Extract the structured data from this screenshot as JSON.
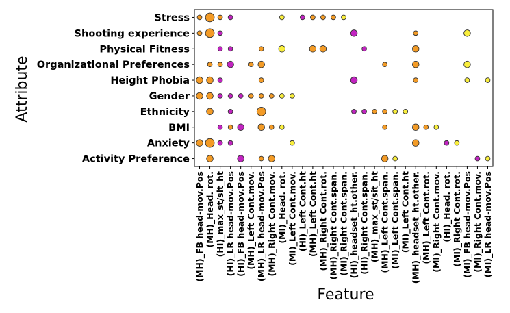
{
  "chart_data": {
    "type": "scatter",
    "title": "",
    "xlabel": "Feature",
    "ylabel": "Attribute",
    "grid": false,
    "legend": "none",
    "colors": {
      "orange": "#f39b26",
      "yellow": "#f9ee3c",
      "magenta": "#c124c0"
    },
    "categories_x": [
      "(MH)_FB head-mov.Pos",
      "(MH)_Head. rot.",
      "(HI)_max_st/sit_ht",
      "(HI)_LR head-mov.Pos",
      "(HI)_FB head-mov.Pos",
      "(MH)_Left Cont.mov.",
      "(MH)_LR head-mov.Pos",
      "(MH)_Right Cont.mov.",
      "(MI)_Head. rot.",
      "(MI)_Left Cont.mov.",
      "(HI)_Left Cont.ht",
      "(MH)_Left Cont.ht",
      "(MH)_Right Cont.rot.",
      "(MH)_Right Cont.span.",
      "(MI)_Right Cont.span.",
      "(HI)_headset_ht.other.",
      "(HI)_Right Cont.span.",
      "(MH)_max_st/sit_ht",
      "(MH)_Left Cont.span.",
      "(MI)_Left Cont.span.",
      "(MI)_Left Cont.ht",
      "(MH)_headset_ht.other.",
      "(MH)_Left Cont.rot.",
      "(MI)_Right Cont.mov.",
      "(HI)_Head. rot.",
      "(MI)_Right Cont.rot.",
      "(MI)_FB head-mov.Pos",
      "(MI)_Right Cont.mov.",
      "(MI)_LR head-mov.Pos"
    ],
    "categories_y": [
      "Stress",
      "Shooting experience",
      "Physical Fitness",
      "Organizational Preferences",
      "Height Phobia",
      "Gender",
      "Ethnicity",
      "BMI",
      "Anxiety",
      "Activity Preference"
    ],
    "size_scale_note": "marker size 1=small 2=medium 3=large",
    "points": [
      {
        "x": 0,
        "y": 0,
        "size": 1,
        "color": "orange"
      },
      {
        "x": 1,
        "y": 0,
        "size": 3,
        "color": "orange"
      },
      {
        "x": 2,
        "y": 0,
        "size": 1,
        "color": "orange"
      },
      {
        "x": 3,
        "y": 0,
        "size": 1,
        "color": "magenta"
      },
      {
        "x": 8,
        "y": 0,
        "size": 1,
        "color": "yellow"
      },
      {
        "x": 10,
        "y": 0,
        "size": 1,
        "color": "magenta"
      },
      {
        "x": 11,
        "y": 0,
        "size": 1,
        "color": "orange"
      },
      {
        "x": 12,
        "y": 0,
        "size": 1,
        "color": "orange"
      },
      {
        "x": 13,
        "y": 0,
        "size": 1,
        "color": "orange"
      },
      {
        "x": 14,
        "y": 0,
        "size": 1,
        "color": "yellow"
      },
      {
        "x": 0,
        "y": 1,
        "size": 1,
        "color": "orange"
      },
      {
        "x": 1,
        "y": 1,
        "size": 3,
        "color": "orange"
      },
      {
        "x": 2,
        "y": 1,
        "size": 1,
        "color": "magenta"
      },
      {
        "x": 15,
        "y": 1,
        "size": 2,
        "color": "magenta"
      },
      {
        "x": 21,
        "y": 1,
        "size": 1,
        "color": "orange"
      },
      {
        "x": 26,
        "y": 1,
        "size": 2,
        "color": "yellow"
      },
      {
        "x": 2,
        "y": 2,
        "size": 1,
        "color": "magenta"
      },
      {
        "x": 3,
        "y": 2,
        "size": 1,
        "color": "magenta"
      },
      {
        "x": 6,
        "y": 2,
        "size": 1,
        "color": "orange"
      },
      {
        "x": 8,
        "y": 2,
        "size": 2,
        "color": "yellow"
      },
      {
        "x": 11,
        "y": 2,
        "size": 2,
        "color": "orange"
      },
      {
        "x": 12,
        "y": 2,
        "size": 2,
        "color": "orange"
      },
      {
        "x": 16,
        "y": 2,
        "size": 1,
        "color": "magenta"
      },
      {
        "x": 21,
        "y": 2,
        "size": 2,
        "color": "orange"
      },
      {
        "x": 1,
        "y": 3,
        "size": 1,
        "color": "orange"
      },
      {
        "x": 2,
        "y": 3,
        "size": 1,
        "color": "orange"
      },
      {
        "x": 3,
        "y": 3,
        "size": 2,
        "color": "magenta"
      },
      {
        "x": 5,
        "y": 3,
        "size": 1,
        "color": "orange"
      },
      {
        "x": 6,
        "y": 3,
        "size": 2,
        "color": "orange"
      },
      {
        "x": 18,
        "y": 3,
        "size": 1,
        "color": "orange"
      },
      {
        "x": 21,
        "y": 3,
        "size": 2,
        "color": "orange"
      },
      {
        "x": 26,
        "y": 3,
        "size": 2,
        "color": "yellow"
      },
      {
        "x": 0,
        "y": 4,
        "size": 2,
        "color": "orange"
      },
      {
        "x": 1,
        "y": 4,
        "size": 2,
        "color": "orange"
      },
      {
        "x": 2,
        "y": 4,
        "size": 1,
        "color": "magenta"
      },
      {
        "x": 6,
        "y": 4,
        "size": 1,
        "color": "orange"
      },
      {
        "x": 15,
        "y": 4,
        "size": 2,
        "color": "magenta"
      },
      {
        "x": 21,
        "y": 4,
        "size": 1,
        "color": "orange"
      },
      {
        "x": 26,
        "y": 4,
        "size": 1,
        "color": "yellow"
      },
      {
        "x": 28,
        "y": 4,
        "size": 1,
        "color": "yellow"
      },
      {
        "x": 0,
        "y": 5,
        "size": 2,
        "color": "orange"
      },
      {
        "x": 1,
        "y": 5,
        "size": 2,
        "color": "orange"
      },
      {
        "x": 2,
        "y": 5,
        "size": 1,
        "color": "magenta"
      },
      {
        "x": 3,
        "y": 5,
        "size": 1,
        "color": "magenta"
      },
      {
        "x": 4,
        "y": 5,
        "size": 1,
        "color": "magenta"
      },
      {
        "x": 5,
        "y": 5,
        "size": 1,
        "color": "orange"
      },
      {
        "x": 6,
        "y": 5,
        "size": 1,
        "color": "orange"
      },
      {
        "x": 7,
        "y": 5,
        "size": 1,
        "color": "orange"
      },
      {
        "x": 8,
        "y": 5,
        "size": 1,
        "color": "yellow"
      },
      {
        "x": 9,
        "y": 5,
        "size": 1,
        "color": "yellow"
      },
      {
        "x": 1,
        "y": 6,
        "size": 2,
        "color": "orange"
      },
      {
        "x": 3,
        "y": 6,
        "size": 1,
        "color": "magenta"
      },
      {
        "x": 6,
        "y": 6,
        "size": 3,
        "color": "orange"
      },
      {
        "x": 15,
        "y": 6,
        "size": 1,
        "color": "magenta"
      },
      {
        "x": 16,
        "y": 6,
        "size": 1,
        "color": "magenta"
      },
      {
        "x": 17,
        "y": 6,
        "size": 1,
        "color": "orange"
      },
      {
        "x": 18,
        "y": 6,
        "size": 1,
        "color": "orange"
      },
      {
        "x": 19,
        "y": 6,
        "size": 1,
        "color": "yellow"
      },
      {
        "x": 20,
        "y": 6,
        "size": 1,
        "color": "yellow"
      },
      {
        "x": 2,
        "y": 7,
        "size": 1,
        "color": "magenta"
      },
      {
        "x": 3,
        "y": 7,
        "size": 1,
        "color": "orange"
      },
      {
        "x": 4,
        "y": 7,
        "size": 2,
        "color": "magenta"
      },
      {
        "x": 6,
        "y": 7,
        "size": 2,
        "color": "orange"
      },
      {
        "x": 7,
        "y": 7,
        "size": 1,
        "color": "orange"
      },
      {
        "x": 8,
        "y": 7,
        "size": 1,
        "color": "yellow"
      },
      {
        "x": 18,
        "y": 7,
        "size": 1,
        "color": "orange"
      },
      {
        "x": 21,
        "y": 7,
        "size": 2,
        "color": "orange"
      },
      {
        "x": 22,
        "y": 7,
        "size": 1,
        "color": "orange"
      },
      {
        "x": 23,
        "y": 7,
        "size": 1,
        "color": "yellow"
      },
      {
        "x": 0,
        "y": 8,
        "size": 2,
        "color": "orange"
      },
      {
        "x": 1,
        "y": 8,
        "size": 3,
        "color": "orange"
      },
      {
        "x": 2,
        "y": 8,
        "size": 1,
        "color": "magenta"
      },
      {
        "x": 3,
        "y": 8,
        "size": 1,
        "color": "magenta"
      },
      {
        "x": 9,
        "y": 8,
        "size": 1,
        "color": "yellow"
      },
      {
        "x": 21,
        "y": 8,
        "size": 2,
        "color": "orange"
      },
      {
        "x": 24,
        "y": 8,
        "size": 1,
        "color": "magenta"
      },
      {
        "x": 25,
        "y": 8,
        "size": 1,
        "color": "yellow"
      },
      {
        "x": 1,
        "y": 9,
        "size": 2,
        "color": "orange"
      },
      {
        "x": 4,
        "y": 9,
        "size": 2,
        "color": "magenta"
      },
      {
        "x": 6,
        "y": 9,
        "size": 1,
        "color": "orange"
      },
      {
        "x": 7,
        "y": 9,
        "size": 2,
        "color": "orange"
      },
      {
        "x": 18,
        "y": 9,
        "size": 2,
        "color": "orange"
      },
      {
        "x": 19,
        "y": 9,
        "size": 1,
        "color": "yellow"
      },
      {
        "x": 27,
        "y": 9,
        "size": 1,
        "color": "magenta"
      },
      {
        "x": 28,
        "y": 9,
        "size": 1,
        "color": "yellow"
      }
    ]
  }
}
